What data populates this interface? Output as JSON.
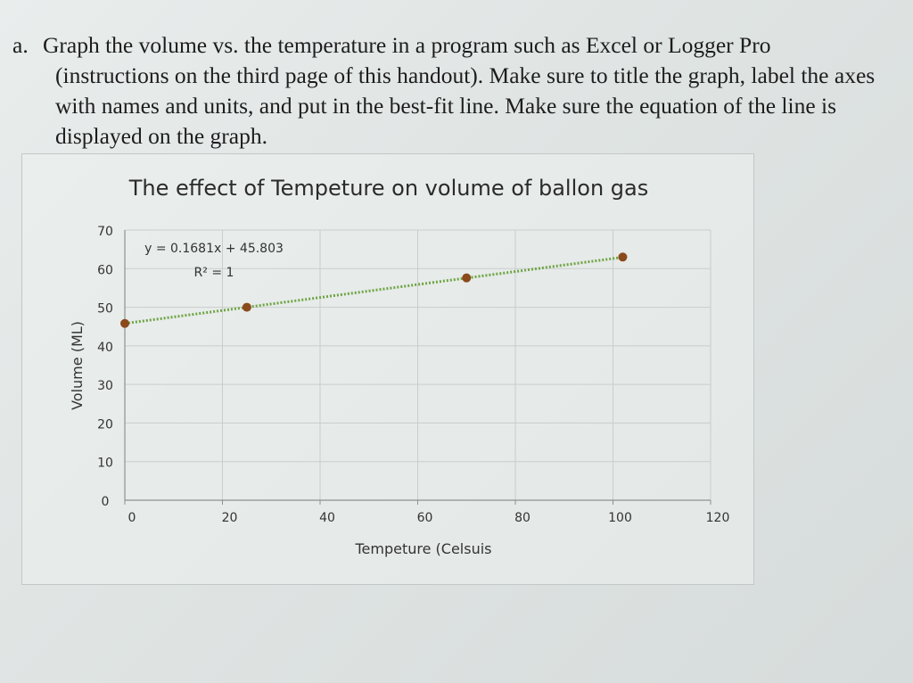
{
  "instructions": {
    "label": "a.",
    "line1": "Graph the volume vs. the temperature in a program such as Excel or Logger Pro",
    "rest": "(instructions on the third page of this handout). Make sure to title the graph, label the axes with names and units, and put in the best-fit line. Make sure the equation of the line is displayed on the graph."
  },
  "chart_data": {
    "type": "scatter",
    "title": "The effect of Tempeture on volume of ballon gas",
    "xlabel": "Tempeture (Celsuis",
    "ylabel": "Volume (ML)",
    "xlim": [
      0,
      120
    ],
    "ylim": [
      0,
      70
    ],
    "x_ticks": [
      0,
      20,
      40,
      60,
      80,
      100,
      120
    ],
    "y_ticks": [
      0,
      10,
      20,
      30,
      40,
      50,
      60,
      70
    ],
    "grid": true,
    "marker_color": "#8b4a1c",
    "trendline_color": "#6fa544",
    "series": [
      {
        "x": [
          0,
          25,
          70,
          102
        ],
        "y": [
          45.8,
          50,
          57.6,
          63
        ]
      }
    ],
    "trendline": {
      "slope": 0.1681,
      "intercept": 45.803,
      "equation": "y = 0.1681x + 45.803",
      "r_squared": "R² = 1"
    }
  }
}
